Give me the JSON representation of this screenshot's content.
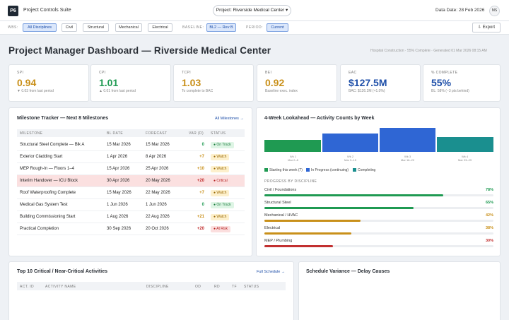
{
  "app": {
    "logo": "P6",
    "suite": "Project Controls Suite",
    "project_select": "Project: Riverside Medical Center ▾",
    "data_date": "Data Date: 28 Feb 2026",
    "avatar": "MS"
  },
  "filters": {
    "wbs_label": "WBS:",
    "wbs_chips": [
      "All Disciplines",
      "Civil",
      "Structural",
      "Mechanical",
      "Electrical"
    ],
    "baseline_label": "BASELINE:",
    "baseline_value": "BL2 — Rev B",
    "period_label": "PERIOD:",
    "period_value": "Current",
    "export_label": "⇩ Export"
  },
  "page": {
    "title": "Project Manager Dashboard — Riverside Medical Center",
    "subtitle": "Hospital Construction · 55% Complete · Generated 01 Mar 2026 08:15 AM"
  },
  "kpis": [
    {
      "label": "SPI",
      "value": "0.94",
      "sub": "▼ 0.03 from last period",
      "color": "#c9901a"
    },
    {
      "label": "CPI",
      "value": "1.01",
      "sub": "▲ 0.01 from last period",
      "color": "#1f9a52"
    },
    {
      "label": "TCPI",
      "value": "1.03",
      "sub": "To complete to BAC",
      "color": "#c9901a"
    },
    {
      "label": "BEI",
      "value": "0.92",
      "sub": "Baseline exec. index",
      "color": "#c9901a"
    },
    {
      "label": "EAC",
      "value": "$127.5M",
      "sub": "BAC: $126.2M (+1.0%)",
      "color": "#1d4ea8"
    },
    {
      "label": "% COMPLETE",
      "value": "55%",
      "sub": "BL: 58% (−3 pts behind)",
      "color": "#1d4ea8"
    }
  ],
  "milestones": {
    "title": "Milestone Tracker — Next 8 Milestones",
    "link": "All Milestones →",
    "headers": [
      "MILESTONE",
      "BL DATE",
      "FORECAST",
      "VAR (D)",
      "STATUS"
    ],
    "rows": [
      {
        "name": "Structural Steel Complete — Blk A",
        "bl": "15 Mar 2026",
        "fc": "15 Mar 2026",
        "var": "0",
        "status": "● On Track",
        "tone": "green"
      },
      {
        "name": "Exterior Cladding Start",
        "bl": "1 Apr 2026",
        "fc": "8 Apr 2026",
        "var": "+7",
        "status": "● Watch",
        "tone": "amber"
      },
      {
        "name": "MEP Rough-In — Floors 1–4",
        "bl": "15 Apr 2026",
        "fc": "25 Apr 2026",
        "var": "+10",
        "status": "● Watch",
        "tone": "amber"
      },
      {
        "name": "Interim Handover — ICU Block",
        "bl": "30 Apr 2026",
        "fc": "20 May 2026",
        "var": "+20",
        "status": "● Critical",
        "tone": "red",
        "highlight": true
      },
      {
        "name": "Roof Waterproofing Complete",
        "bl": "15 May 2026",
        "fc": "22 May 2026",
        "var": "+7",
        "status": "● Watch",
        "tone": "amber"
      },
      {
        "name": "Medical Gas System Test",
        "bl": "1 Jun 2026",
        "fc": "1 Jun 2026",
        "var": "0",
        "status": "● On Track",
        "tone": "green"
      },
      {
        "name": "Building Commissioning Start",
        "bl": "1 Aug 2026",
        "fc": "22 Aug 2026",
        "var": "+21",
        "status": "● Watch",
        "tone": "amber"
      },
      {
        "name": "Practical Completion",
        "bl": "30 Sep 2026",
        "fc": "20 Oct 2026",
        "var": "+20",
        "status": "● At Risk",
        "tone": "red"
      }
    ]
  },
  "lookahead": {
    "title": "4-Week Lookahead — Activity Counts by Week",
    "weeks": [
      {
        "label1": "Wk 1",
        "label2": "Mar 2–8"
      },
      {
        "label1": "Wk 2",
        "label2": "Mar 9–15"
      },
      {
        "label1": "Wk 3",
        "label2": "Mar 16–22"
      },
      {
        "label1": "Wk 4",
        "label2": "Mar 23–29"
      }
    ],
    "legend": [
      "Starting this week (7)",
      "In Progress (continuing)",
      "Completing"
    ],
    "legend_colors": [
      "#1f9a52",
      "#2f66d4",
      "#1a8f8f"
    ],
    "progress_title": "PROGRESS BY DISCIPLINE",
    "disciplines": [
      {
        "name": "Civil / Foundations",
        "pct": "78%",
        "value": 78,
        "color": "#1f9a52"
      },
      {
        "name": "Structural Steel",
        "pct": "65%",
        "value": 65,
        "color": "#1f9a52"
      },
      {
        "name": "Mechanical / HVAC",
        "pct": "42%",
        "value": 42,
        "color": "#c9901a"
      },
      {
        "name": "Electrical",
        "pct": "38%",
        "value": 38,
        "color": "#c9901a"
      },
      {
        "name": "MEP / Plumbing",
        "pct": "30%",
        "value": 30,
        "color": "#c23030"
      }
    ]
  },
  "critical": {
    "title": "Top 10 Critical / Near-Critical Activities",
    "link": "Full Schedule →",
    "headers": [
      "ACT. ID",
      "ACTIVITY NAME",
      "DISCIPLINE",
      "OD",
      "RD",
      "TF",
      "STATUS"
    ]
  },
  "variance": {
    "title": "Schedule Variance — Delay Causes"
  }
}
